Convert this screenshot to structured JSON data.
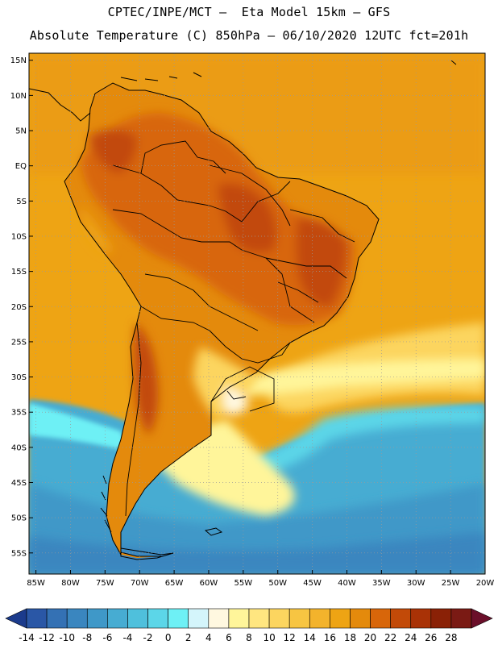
{
  "title": {
    "line1": "CPTEC/INPE/MCT –  Eta Model 15km – GFS",
    "line2": "Absolute Temperature (C) 850hPa – 06/10/2020 12UTC fct=201h"
  },
  "map": {
    "projection": "lat-lon",
    "lon_range": [
      -86,
      -20
    ],
    "lat_range": [
      -58,
      16
    ],
    "lat_ticks": [
      {
        "value": 15,
        "label": "15N"
      },
      {
        "value": 10,
        "label": "10N"
      },
      {
        "value": 5,
        "label": "5N"
      },
      {
        "value": 0,
        "label": "EQ"
      },
      {
        "value": -5,
        "label": "5S"
      },
      {
        "value": -10,
        "label": "10S"
      },
      {
        "value": -15,
        "label": "15S"
      },
      {
        "value": -20,
        "label": "20S"
      },
      {
        "value": -25,
        "label": "25S"
      },
      {
        "value": -30,
        "label": "30S"
      },
      {
        "value": -35,
        "label": "35S"
      },
      {
        "value": -40,
        "label": "40S"
      },
      {
        "value": -45,
        "label": "45S"
      },
      {
        "value": -50,
        "label": "50S"
      },
      {
        "value": -55,
        "label": "55S"
      }
    ],
    "lon_ticks": [
      {
        "value": -85,
        "label": "85W"
      },
      {
        "value": -80,
        "label": "80W"
      },
      {
        "value": -75,
        "label": "75W"
      },
      {
        "value": -70,
        "label": "70W"
      },
      {
        "value": -65,
        "label": "65W"
      },
      {
        "value": -60,
        "label": "60W"
      },
      {
        "value": -55,
        "label": "55W"
      },
      {
        "value": -50,
        "label": "50W"
      },
      {
        "value": -45,
        "label": "45W"
      },
      {
        "value": -40,
        "label": "40W"
      },
      {
        "value": -35,
        "label": "35W"
      },
      {
        "value": -30,
        "label": "30W"
      },
      {
        "value": -25,
        "label": "25W"
      },
      {
        "value": -20,
        "label": "20W"
      }
    ]
  },
  "colorbar": {
    "levels": [
      "-14",
      "-12",
      "-10",
      "-8",
      "-6",
      "-4",
      "-2",
      "0",
      "2",
      "4",
      "6",
      "8",
      "10",
      "12",
      "14",
      "16",
      "18",
      "20",
      "22",
      "24",
      "26",
      "28"
    ],
    "colors": [
      "#1b3b8c",
      "#2a57a6",
      "#3471b4",
      "#3a86bf",
      "#3f98c8",
      "#47acd2",
      "#4fc0dc",
      "#5cd6e8",
      "#6ef0f5",
      "#d4f5fb",
      "#fff8e0",
      "#fff59a",
      "#ffe680",
      "#fcd55f",
      "#f7c542",
      "#f3b32c",
      "#eea414",
      "#e48a0c",
      "#d8660a",
      "#c24a08",
      "#a93206",
      "#8a2106",
      "#7a1a14",
      "#6b0f2a"
    ]
  },
  "colors": {
    "ocean_warm": "#eaa81c",
    "land_hot": "#c9580c",
    "cold_ocean": "#4bbbd6",
    "coast": "#000000"
  }
}
